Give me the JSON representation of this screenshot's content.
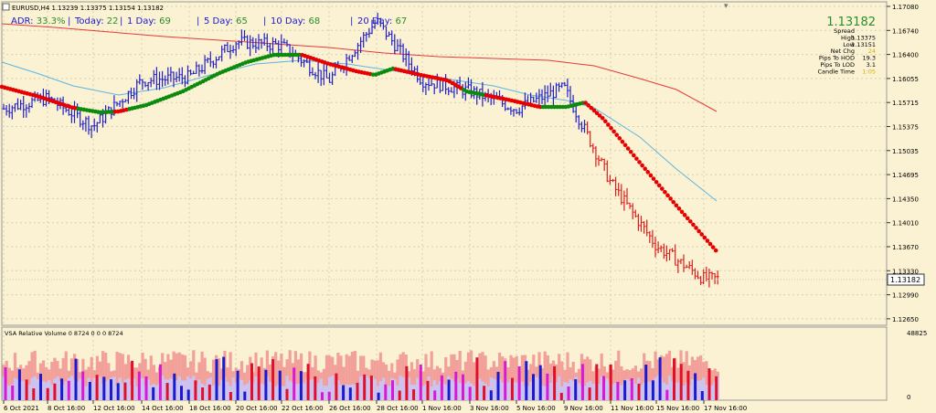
{
  "symbol_line": "EURUSD,H4  1.13239 1.13375 1.13154 1.13182",
  "adr_stats": [
    {
      "label": "ADR: ",
      "value": "33.3%"
    },
    {
      "label": "Today: ",
      "value": "22"
    },
    {
      "label": "1 Day: ",
      "value": "69"
    },
    {
      "label": "5 Day: ",
      "value": "65"
    },
    {
      "label": "10 Day: ",
      "value": "68"
    },
    {
      "label": "20 Day: ",
      "value": "67"
    }
  ],
  "info_panel": {
    "price": "1.13182",
    "rows": [
      {
        "label": "Spread",
        "value": ""
      },
      {
        "label": "High",
        "value": "1.13375"
      },
      {
        "label": "Low",
        "value": "1.13151"
      },
      {
        "label": "Net Chg",
        "value": "24"
      },
      {
        "label": "Pips To HOD",
        "value": "19.3"
      },
      {
        "label": "Pips To LOD",
        "value": "3.1"
      },
      {
        "label": "Candle Time",
        "value": "1:05"
      }
    ]
  },
  "price_axis": [
    "1.17080",
    "1.16740",
    "1.16400",
    "1.16055",
    "1.15715",
    "1.15375",
    "1.15035",
    "1.14695",
    "1.14350",
    "1.14010",
    "1.13670",
    "1.13330",
    "1.12990",
    "1.12650"
  ],
  "current_price_label": "1.13182",
  "volume_panel": {
    "title": "VSA Relative Volume 0 8724 0 0 0 8724",
    "axis_top": "48825",
    "axis_bottom": "0"
  },
  "time_axis": [
    "6 Oct 2021",
    "8 Oct 16:00",
    "12 Oct 16:00",
    "14 Oct 16:00",
    "18 Oct 16:00",
    "20 Oct 16:00",
    "22 Oct 16:00",
    "26 Oct 16:00",
    "28 Oct 16:00",
    "1 Nov 16:00",
    "3 Nov 16:00",
    "5 Nov 16:00",
    "9 Nov 16:00",
    "11 Nov 16:00",
    "15 Nov 16:00",
    "17 Nov 16:00"
  ],
  "colors": {
    "background": "#fbf1d3",
    "bar": "#2121c8",
    "bar_down": "#dc1f1f",
    "ma_red": "#e53a3a",
    "ma_blue": "#5bb6e3",
    "dot_red": "#e60000",
    "dot_green": "#0c8a0c",
    "label_green": "#2a8f2a",
    "label_blue": "#1a1acc",
    "volume_band": "#f2a09a",
    "volume_lav": "#cdc3f1"
  },
  "chart_data": {
    "type": "ohlc",
    "symbol": "EURUSD",
    "timeframe": "H4",
    "ylim": [
      1.1252,
      1.1712
    ],
    "key_closes": [
      {
        "time": "6 Oct 2021",
        "price": 1.156
      },
      {
        "time": "8 Oct 16:00",
        "price": 1.1575
      },
      {
        "time": "12 Oct 16:00",
        "price": 1.1535
      },
      {
        "time": "14 Oct 16:00",
        "price": 1.16
      },
      {
        "time": "18 Oct 16:00",
        "price": 1.1605
      },
      {
        "time": "20 Oct 16:00",
        "price": 1.1655
      },
      {
        "time": "22 Oct 16:00",
        "price": 1.165
      },
      {
        "time": "26 Oct 16:00",
        "price": 1.16
      },
      {
        "time": "28 Oct 16:00",
        "price": 1.1685
      },
      {
        "time": "1 Nov 16:00",
        "price": 1.16
      },
      {
        "time": "3 Nov 16:00",
        "price": 1.1585
      },
      {
        "time": "5 Nov 16:00",
        "price": 1.156
      },
      {
        "time": "9 Nov 16:00",
        "price": 1.159
      },
      {
        "time": "11 Nov 16:00",
        "price": 1.1455
      },
      {
        "time": "15 Nov 16:00",
        "price": 1.1365
      },
      {
        "time": "17 Nov 16:00",
        "price": 1.1318
      }
    ]
  }
}
